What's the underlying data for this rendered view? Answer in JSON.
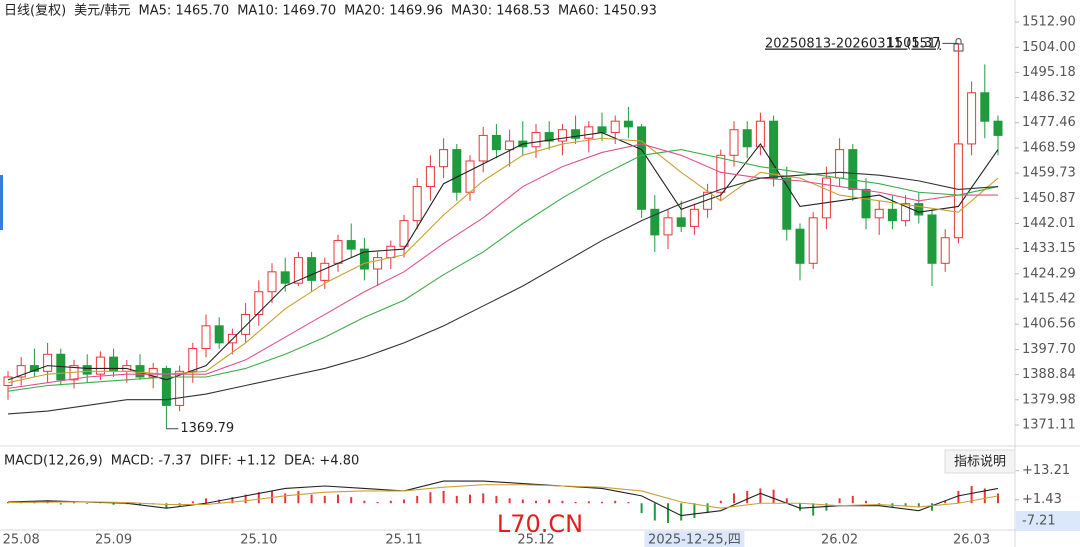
{
  "chart_data": [
    {
      "type": "candlestick",
      "title": "日线(复权)",
      "subtitle": "美元/韩元",
      "up_color": "#e8353a",
      "down_color": "#1f9a3c",
      "ylim": [
        1365.83,
        1520.64
      ],
      "yticks": [
        {
          "value": 1512.9,
          "label": "1512.90"
        },
        {
          "value": 1504.0,
          "label": "1504.00"
        },
        {
          "value": 1495.18,
          "label": "1495.18"
        },
        {
          "value": 1486.32,
          "label": "1486.32"
        },
        {
          "value": 1477.46,
          "label": "1477.46"
        },
        {
          "value": 1468.59,
          "label": "1468.59"
        },
        {
          "value": 1459.73,
          "label": "1459.73"
        },
        {
          "value": 1450.87,
          "label": "1450.87"
        },
        {
          "value": 1442.01,
          "label": "1442.01"
        },
        {
          "value": 1433.15,
          "label": "1433.15"
        },
        {
          "value": 1424.29,
          "label": "1424.29"
        },
        {
          "value": 1415.42,
          "label": "1415.42"
        },
        {
          "value": 1406.56,
          "label": "1406.56"
        },
        {
          "value": 1397.7,
          "label": "1397.70"
        },
        {
          "value": 1388.84,
          "label": "1388.84"
        },
        {
          "value": 1379.98,
          "label": "1379.98"
        },
        {
          "value": 1371.11,
          "label": "1371.11"
        }
      ],
      "range_label": "20250813-20260311 (151)",
      "max_label": 1505.37,
      "min_label": 1369.79,
      "watermark": "L70.CN",
      "candles": [
        [
          1385,
          1390,
          1380,
          1388
        ],
        [
          1388,
          1395,
          1385,
          1392
        ],
        [
          1392,
          1398,
          1388,
          1390
        ],
        [
          1390,
          1400,
          1386,
          1396
        ],
        [
          1396,
          1398,
          1385,
          1387
        ],
        [
          1387,
          1394,
          1384,
          1392
        ],
        [
          1392,
          1396,
          1386,
          1389
        ],
        [
          1389,
          1397,
          1387,
          1395
        ],
        [
          1395,
          1398,
          1388,
          1390
        ],
        [
          1390,
          1394,
          1386,
          1392
        ],
        [
          1392,
          1396,
          1387,
          1388
        ],
        [
          1388,
          1393,
          1384,
          1391
        ],
        [
          1391,
          1392,
          1369.79,
          1378
        ],
        [
          1378,
          1392,
          1376,
          1390
        ],
        [
          1390,
          1400,
          1386,
          1398
        ],
        [
          1398,
          1410,
          1395,
          1406
        ],
        [
          1406,
          1409,
          1398,
          1400
        ],
        [
          1400,
          1405,
          1396,
          1403
        ],
        [
          1403,
          1414,
          1400,
          1410
        ],
        [
          1410,
          1422,
          1406,
          1418
        ],
        [
          1418,
          1428,
          1414,
          1425
        ],
        [
          1425,
          1430,
          1418,
          1421
        ],
        [
          1421,
          1432,
          1420,
          1430
        ],
        [
          1430,
          1432,
          1418,
          1422
        ],
        [
          1422,
          1430,
          1419,
          1428
        ],
        [
          1428,
          1438,
          1425,
          1436
        ],
        [
          1436,
          1442,
          1430,
          1433
        ],
        [
          1433,
          1437,
          1422,
          1426
        ],
        [
          1426,
          1432,
          1420,
          1430
        ],
        [
          1430,
          1436,
          1426,
          1434
        ],
        [
          1434,
          1445,
          1430,
          1443
        ],
        [
          1443,
          1458,
          1440,
          1455
        ],
        [
          1455,
          1466,
          1450,
          1462
        ],
        [
          1462,
          1472,
          1458,
          1468
        ],
        [
          1468,
          1470,
          1450,
          1453
        ],
        [
          1453,
          1466,
          1450,
          1464
        ],
        [
          1464,
          1476,
          1460,
          1473
        ],
        [
          1473,
          1477,
          1465,
          1468
        ],
        [
          1468,
          1475,
          1462,
          1471
        ],
        [
          1471,
          1478,
          1466,
          1469
        ],
        [
          1469,
          1477,
          1465,
          1474
        ],
        [
          1474,
          1478,
          1468,
          1471
        ],
        [
          1471,
          1477,
          1466,
          1475
        ],
        [
          1475,
          1480,
          1470,
          1472
        ],
        [
          1472,
          1478,
          1467,
          1476
        ],
        [
          1476,
          1481,
          1471,
          1474
        ],
        [
          1474,
          1480,
          1470,
          1478
        ],
        [
          1478,
          1483,
          1472,
          1476
        ],
        [
          1476,
          1477,
          1444,
          1447
        ],
        [
          1447,
          1452,
          1432,
          1438
        ],
        [
          1438,
          1447,
          1433,
          1444
        ],
        [
          1444,
          1450,
          1439,
          1441
        ],
        [
          1441,
          1449,
          1438,
          1447
        ],
        [
          1447,
          1456,
          1444,
          1453
        ],
        [
          1453,
          1468,
          1450,
          1466
        ],
        [
          1466,
          1478,
          1462,
          1475
        ],
        [
          1475,
          1478,
          1465,
          1469
        ],
        [
          1469,
          1481,
          1466,
          1478
        ],
        [
          1478,
          1480,
          1455,
          1458
        ],
        [
          1458,
          1462,
          1436,
          1440
        ],
        [
          1440,
          1442,
          1422,
          1428
        ],
        [
          1428,
          1446,
          1426,
          1444
        ],
        [
          1444,
          1462,
          1440,
          1458
        ],
        [
          1458,
          1472,
          1455,
          1468
        ],
        [
          1468,
          1470,
          1450,
          1454
        ],
        [
          1454,
          1458,
          1440,
          1444
        ],
        [
          1444,
          1450,
          1438,
          1447
        ],
        [
          1447,
          1452,
          1440,
          1443
        ],
        [
          1443,
          1452,
          1441,
          1449
        ],
        [
          1449,
          1453,
          1442,
          1445
        ],
        [
          1445,
          1447,
          1420,
          1428
        ],
        [
          1428,
          1440,
          1425,
          1437
        ],
        [
          1437,
          1505.37,
          1435,
          1470
        ],
        [
          1470,
          1492,
          1466,
          1488
        ],
        [
          1488,
          1498,
          1472,
          1478
        ],
        [
          1478,
          1480,
          1466,
          1473
        ]
      ],
      "ma_x": [
        0,
        3,
        6,
        9,
        12,
        15,
        18,
        21,
        24,
        27,
        30,
        33,
        36,
        39,
        42,
        45,
        48,
        51,
        54,
        57,
        60,
        63,
        66,
        69,
        72,
        75
      ],
      "series": [
        {
          "label": "MA5: 1465.70",
          "color": "#222222",
          "values": [
            1387,
            1392,
            1391,
            1391,
            1387,
            1392,
            1406,
            1420,
            1426,
            1432,
            1433,
            1456,
            1463,
            1470,
            1472,
            1474,
            1468,
            1447,
            1452,
            1470,
            1448,
            1450,
            1452,
            1446,
            1448,
            1468
          ]
        },
        {
          "label": "MA10: 1469.70",
          "color": "#c9a033",
          "values": [
            1386,
            1389,
            1390,
            1390,
            1389,
            1390,
            1400,
            1412,
            1421,
            1428,
            1431,
            1445,
            1457,
            1466,
            1470,
            1472,
            1471,
            1460,
            1450,
            1460,
            1458,
            1452,
            1450,
            1448,
            1446,
            1458
          ]
        },
        {
          "label": "MA20: 1469.96",
          "color": "#e2508f",
          "values": [
            1384,
            1386,
            1388,
            1389,
            1389,
            1389,
            1394,
            1402,
            1410,
            1418,
            1425,
            1435,
            1444,
            1455,
            1462,
            1467,
            1470,
            1466,
            1460,
            1458,
            1457,
            1455,
            1453,
            1450,
            1452,
            1452
          ]
        },
        {
          "label": "MA30: 1468.53",
          "color": "#3cae4a",
          "values": [
            1383,
            1385,
            1386,
            1387,
            1388,
            1388,
            1391,
            1396,
            1402,
            1409,
            1415,
            1424,
            1432,
            1442,
            1451,
            1459,
            1466,
            1468,
            1465,
            1462,
            1460,
            1458,
            1456,
            1453,
            1452,
            1455
          ]
        },
        {
          "label": "MA60: 1450.93",
          "color": "#333333",
          "values": [
            1375,
            1376,
            1378,
            1380,
            1380,
            1382,
            1385,
            1388,
            1391,
            1395,
            1400,
            1406,
            1413,
            1420,
            1428,
            1436,
            1443,
            1449,
            1454,
            1458,
            1459,
            1460,
            1459,
            1457,
            1454,
            1455
          ]
        }
      ]
    },
    {
      "type": "macd",
      "title": "MACD(12,26,9)",
      "macd_label": "MACD: -7.37",
      "macd_color": "#1f9a3c",
      "up_color": "#e8353a",
      "down_color": "#1f9a3c",
      "ylim": [
        -12.87,
        20.78
      ],
      "yticks": [
        {
          "value": 13.21,
          "label": "+13.21"
        },
        {
          "value": 1.43,
          "label": "+1.43"
        }
      ],
      "cursor_value": -7.21,
      "histogram": [
        0.5,
        0.8,
        0.6,
        1,
        -0.5,
        0.3,
        -0.3,
        0.4,
        -0.6,
        -0.4,
        -0.8,
        -0.5,
        -2,
        -1,
        0.8,
        2,
        1.5,
        2.5,
        3.5,
        4.5,
        5,
        4,
        5,
        3.5,
        3,
        3.5,
        2.5,
        1,
        0.5,
        1,
        1.5,
        3,
        4.5,
        5,
        3,
        3.5,
        4,
        3,
        2,
        1.5,
        1,
        1.5,
        1,
        0.5,
        0.8,
        0.6,
        1,
        0.5,
        -4,
        -7,
        -8,
        -7,
        -6,
        -4,
        1,
        4,
        5,
        6,
        5.5,
        2,
        -3,
        -5,
        -3,
        2,
        3,
        1,
        -1,
        -1.5,
        -1,
        -1.5,
        -3,
        1,
        5,
        7,
        6,
        4
      ],
      "line_x": [
        0,
        3,
        6,
        9,
        12,
        15,
        18,
        21,
        24,
        27,
        30,
        33,
        36,
        39,
        42,
        45,
        48,
        51,
        54,
        57,
        60,
        63,
        66,
        69,
        72,
        75
      ],
      "series": [
        {
          "label": "DIFF: +1.12",
          "color": "#222222",
          "values": [
            0.5,
            1,
            0.5,
            0,
            -2,
            0,
            3,
            6,
            7,
            6,
            5,
            9,
            9,
            8,
            7,
            6,
            3,
            -5,
            -3,
            4,
            -2,
            -1,
            -1,
            -3,
            3,
            6
          ]
        },
        {
          "label": "DEA: +4.80",
          "color": "#c9a033",
          "values": [
            0.3,
            0.5,
            0.6,
            0.3,
            -0.5,
            -0.5,
            1,
            3,
            4.5,
            5,
            5,
            6.5,
            7.5,
            7.5,
            7,
            6.5,
            5,
            0.5,
            -2,
            0,
            0,
            -1,
            -0.5,
            -1.5,
            0,
            3
          ]
        }
      ],
      "xticks": [
        {
          "value": 1,
          "label": "25.08"
        },
        {
          "value": 8,
          "label": "25.09"
        },
        {
          "value": 19,
          "label": "25.10"
        },
        {
          "value": 30,
          "label": "25.11"
        },
        {
          "value": 40,
          "label": "25.12"
        },
        {
          "value": 63,
          "label": "26.02"
        },
        {
          "value": 73,
          "label": "26.03"
        }
      ],
      "cursor": {
        "value": 52,
        "label": "2025-12-25,四"
      },
      "button": "指标说明"
    }
  ]
}
